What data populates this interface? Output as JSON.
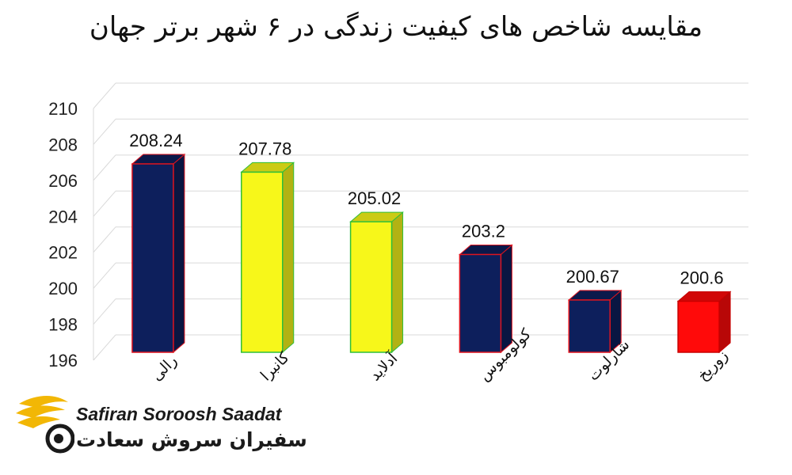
{
  "chart_data": {
    "type": "bar",
    "title": "مقایسه شاخص های کیفیت زندگی در ۶ شهر برتر جهان",
    "categories": [
      "رالی",
      "کانبرا",
      "آدلاید",
      "کولومبوس",
      "شارلوت",
      "زوریخ"
    ],
    "values": [
      208.24,
      207.78,
      205.02,
      203.2,
      200.67,
      200.6
    ],
    "data_labels": [
      "208.24",
      "207.78",
      "205.02",
      "203.2",
      "200.67",
      "200.6"
    ],
    "yticks": [
      196,
      198,
      200,
      202,
      204,
      206,
      208,
      210
    ],
    "ylim": [
      196,
      210
    ],
    "grid": true,
    "legend": "none",
    "bar_colors": [
      "#0d1f5c",
      "#f7f71a",
      "#f7f71a",
      "#0d1f5c",
      "#0d1f5c",
      "#ff0a0a"
    ],
    "bar_edge_colors": [
      "#e0141e",
      "#2fbf3a",
      "#2fbf3a",
      "#e0141e",
      "#e0141e",
      "#c80000"
    ]
  },
  "logo": {
    "text_en": "Safiran Soroosh Saadat",
    "text_fa": "سفیران سروش سعادت"
  }
}
